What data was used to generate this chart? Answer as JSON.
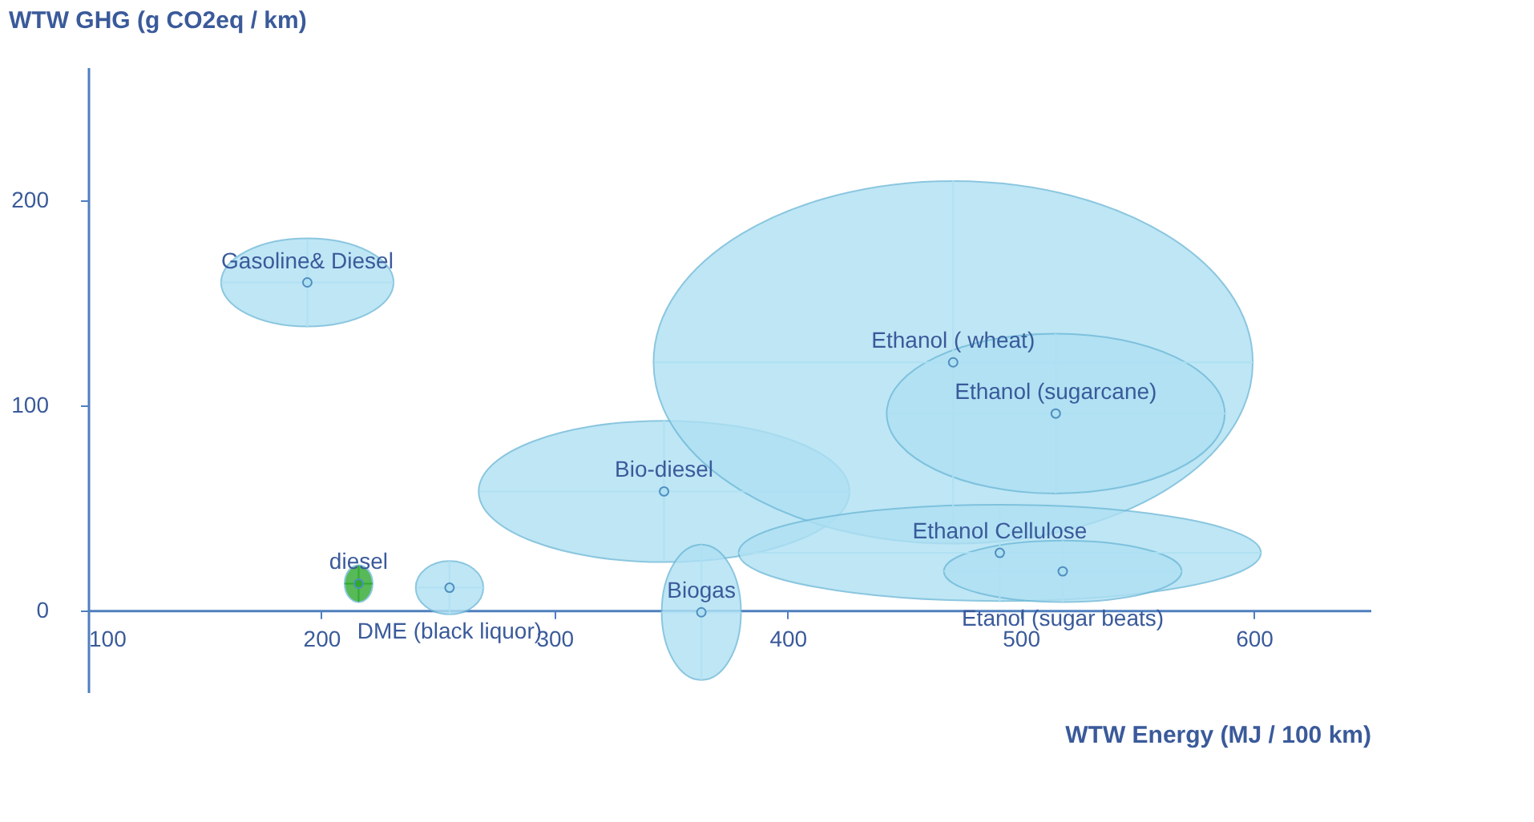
{
  "chart_data": {
    "type": "scatter",
    "xlabel": "WTW Energy (MJ / 100 km)",
    "ylabel": "WTW GHG (g CO2eq / km)",
    "xlim": [
      100,
      650
    ],
    "ylim": [
      -40,
      265
    ],
    "xticks": [
      100,
      200,
      300,
      400,
      500,
      600
    ],
    "yticks": [
      0,
      100,
      200
    ],
    "grid": false,
    "series": [
      {
        "name": "Gasoline& Diesel",
        "color": "#aee0f3",
        "x": [
          194
        ],
        "values": [
          160
        ],
        "xerrors": [
          [
            157,
            231
          ]
        ],
        "errors": [
          [
            138,
            181
          ]
        ]
      },
      {
        "name": "diesel",
        "color": "#2ea82e",
        "x": [
          216
        ],
        "values": [
          13
        ],
        "xerrors": [
          [
            210,
            222
          ]
        ],
        "errors": [
          [
            4,
            22
          ]
        ]
      },
      {
        "name": "DME (black liquor)",
        "color": "#aee0f3",
        "x": [
          255
        ],
        "values": [
          11
        ],
        "xerrors": [
          [
            241,
            270
          ]
        ],
        "errors": [
          [
            -2,
            24
          ]
        ]
      },
      {
        "name": "Bio-diesel",
        "color": "#aee0f3",
        "x": [
          347
        ],
        "values": [
          58
        ],
        "xerrors": [
          [
            268,
            427
          ]
        ],
        "errors": [
          [
            24,
            93
          ]
        ]
      },
      {
        "name": "Biogas",
        "color": "#aee0f3",
        "x": [
          363
        ],
        "values": [
          -1
        ],
        "xerrors": [
          [
            346,
            380
          ]
        ],
        "errors": [
          [
            -34,
            32
          ]
        ]
      },
      {
        "name": "Ethanol ( wheat)",
        "color": "#aee0f3",
        "x": [
          471
        ],
        "values": [
          121
        ],
        "xerrors": [
          [
            343,
            600
          ]
        ],
        "errors": [
          [
            33,
            210
          ]
        ]
      },
      {
        "name": "Ethanol (sugarcane)",
        "color": "#aee0f3",
        "x": [
          515
        ],
        "values": [
          96
        ],
        "xerrors": [
          [
            443,
            588
          ]
        ],
        "errors": [
          [
            57,
            135
          ]
        ]
      },
      {
        "name": "Ethanol Cellulose",
        "color": "#aee0f3",
        "x": [
          491
        ],
        "values": [
          28
        ],
        "xerrors": [
          [
            379,
            603
          ]
        ],
        "errors": [
          [
            4,
            51
          ]
        ]
      },
      {
        "name": "Etanol (sugar beats)",
        "color": "#aee0f3",
        "x": [
          518
        ],
        "values": [
          19
        ],
        "xerrors": [
          [
            467,
            569
          ]
        ],
        "errors": [
          [
            4,
            34
          ]
        ]
      }
    ]
  }
}
